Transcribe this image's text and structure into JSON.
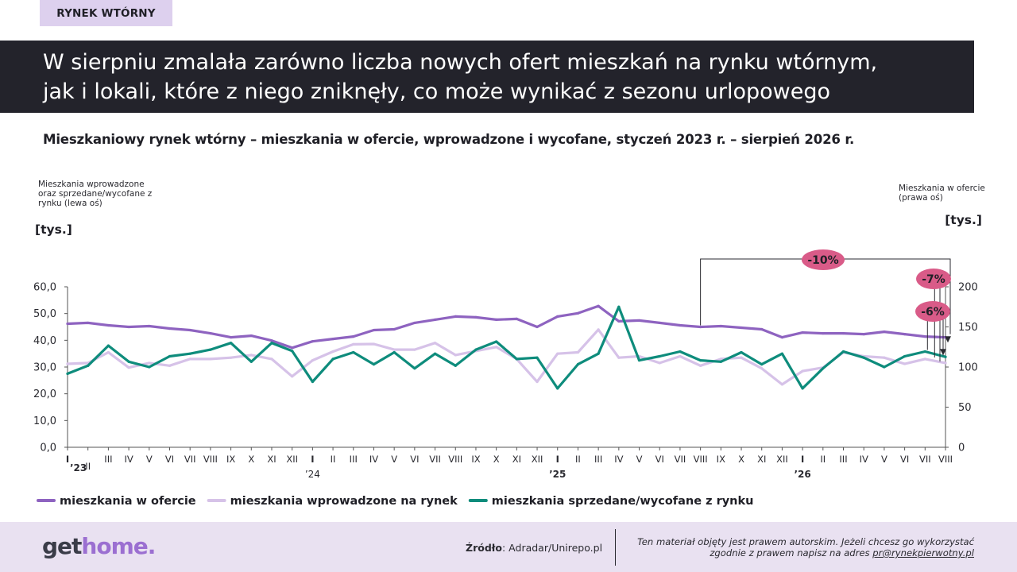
{
  "tag": "RYNEK WTÓRNY",
  "headline": {
    "line1": "W sierpniu zmalała zarówno liczba nowych ofert mieszkań na rynku wtórnym,",
    "line2": "jak i lokali, które z niego zniknęły, co może wynikać z sezonu urlopowego"
  },
  "subtitle": "Mieszkaniowy rynek wtórny – mieszkania w ofercie, wprowadzone i wycofane, styczeń 2023 r. – sierpień 2026 r.",
  "footer": {
    "logo_part1": "get",
    "logo_part2": "home",
    "logo_dot": ".",
    "source_label": "Źródło",
    "source_value": ": Adradar/Unirepo.pl",
    "copyright_line1": "Ten materiał objęty jest prawem autorskim. Jeżeli chcesz go wykorzystać",
    "copyright_line2_prefix": "zgodnie z prawem napisz na adres ",
    "copyright_email": "pr@rynekpierwotny.pl"
  },
  "chart_data": {
    "type": "line",
    "left_axis_note": [
      "Mieszkania wprowadzone",
      "oraz sprzedane/wycofane z",
      "rynku (lewa oś)"
    ],
    "right_axis_note": [
      "Mieszkania w ofercie",
      "(prawa oś)"
    ],
    "left_unit": "[tys.]",
    "right_unit": "[tys.]",
    "ylim_left": [
      0,
      60
    ],
    "ylim_right": [
      0,
      200
    ],
    "left_ticks": [
      "0,0",
      "10,0",
      "20,0",
      "30,0",
      "40,0",
      "50,0",
      "60,0"
    ],
    "right_ticks": [
      "0",
      "50",
      "100",
      "150",
      "200"
    ],
    "x_labels": [
      "I",
      "II",
      "III",
      "IV",
      "V",
      "VI",
      "VII",
      "VIII",
      "IX",
      "X",
      "XI",
      "XII",
      "I",
      "II",
      "III",
      "IV",
      "V",
      "VI",
      "VII",
      "VIII",
      "IX",
      "X",
      "XI",
      "XII",
      "I",
      "II",
      "III",
      "IV",
      "V",
      "VI",
      "VII",
      "VIII",
      "IX",
      "X",
      "XI",
      "XII",
      "I",
      "II",
      "III",
      "IV",
      "V",
      "VI",
      "VII",
      "VIII"
    ],
    "year_labels": [
      {
        "index": 0,
        "text": "’23"
      },
      {
        "index": 12,
        "text": "’24"
      },
      {
        "index": 24,
        "text": "’25"
      },
      {
        "index": 36,
        "text": "’26"
      }
    ],
    "series": [
      {
        "name": "mieszkania w ofercie",
        "axis": "right",
        "color": "#8e63c0",
        "values": [
          154,
          155,
          152,
          150,
          151,
          148,
          146,
          142,
          137,
          139,
          133,
          124,
          132,
          135,
          138,
          146,
          147,
          155,
          159,
          163,
          162,
          159,
          160,
          150,
          163,
          167,
          176,
          157,
          158,
          155,
          152,
          150,
          151,
          149,
          147,
          137,
          143,
          142,
          142,
          141,
          144,
          141,
          138,
          137
        ]
      },
      {
        "name": "mieszkania wprowadzone na rynek",
        "axis": "left",
        "color": "#d6c2e8",
        "values": [
          31.2,
          31.5,
          35.5,
          29.8,
          31.5,
          30.5,
          33.0,
          33.0,
          33.5,
          34.5,
          33.0,
          26.5,
          32.5,
          35.8,
          38.5,
          38.6,
          36.5,
          36.5,
          39.0,
          34.5,
          36.0,
          37.5,
          33.0,
          24.5,
          35.0,
          35.5,
          44.0,
          33.5,
          34.0,
          31.5,
          34.0,
          30.5,
          33.0,
          33.5,
          29.5,
          23.5,
          28.5,
          29.8,
          35.5,
          34.0,
          33.5,
          31.2,
          33.0,
          31.5
        ]
      },
      {
        "name": "mieszkania sprzedane/wycofane z rynku",
        "axis": "left",
        "color": "#0e8c7c",
        "values": [
          27.5,
          30.5,
          38.0,
          32.0,
          30.0,
          34.0,
          35.0,
          36.5,
          39.0,
          32.0,
          39.0,
          36.0,
          24.5,
          33.0,
          35.5,
          31.0,
          35.5,
          29.5,
          35.0,
          30.5,
          36.5,
          39.5,
          33.0,
          33.5,
          22.0,
          31.0,
          35.0,
          52.5,
          32.5,
          34.0,
          35.8,
          32.5,
          32.0,
          35.5,
          31.0,
          35.0,
          22.0,
          29.5,
          35.8,
          33.5,
          30.0,
          34.0,
          35.8,
          33.8
        ]
      }
    ],
    "annotations": [
      {
        "text": "-10%",
        "color": "#d95b88"
      },
      {
        "text": "-7%",
        "color": "#d95b88"
      },
      {
        "text": "-6%",
        "color": "#d95b88"
      }
    ],
    "legend_position": "bottom",
    "grid": false
  }
}
